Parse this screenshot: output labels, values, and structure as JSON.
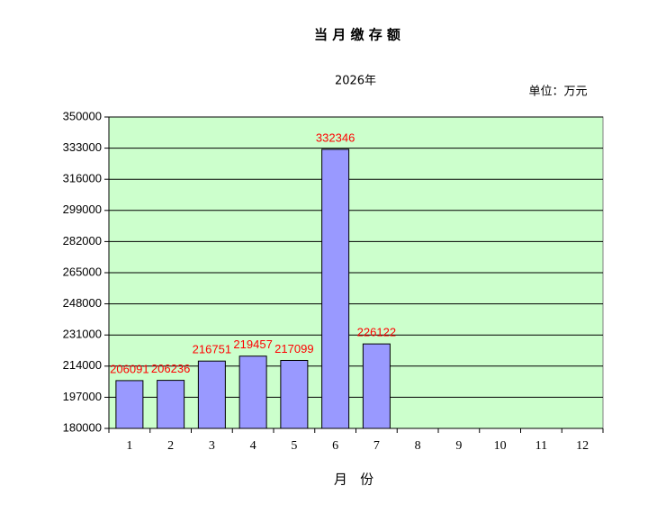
{
  "chart_data": {
    "type": "bar",
    "title": "当 月 缴 存 额",
    "subtitle": "2026年",
    "unit_label": "单位：万元",
    "x_label": "月   份",
    "categories": [
      "1",
      "2",
      "3",
      "4",
      "5",
      "6",
      "7",
      "8",
      "9",
      "10",
      "11",
      "12"
    ],
    "values": [
      206091,
      206236,
      216751,
      219457,
      217099,
      332346,
      226122,
      null,
      null,
      null,
      null,
      null
    ],
    "color": "#9999ff",
    "label_color": "#ff0000",
    "plot_background": "#ccffcc",
    "ylim": [
      180000,
      350000
    ],
    "yticks": [
      180000,
      197000,
      214000,
      231000,
      248000,
      265000,
      282000,
      299000,
      316000,
      333000,
      350000
    ],
    "grid": true
  }
}
